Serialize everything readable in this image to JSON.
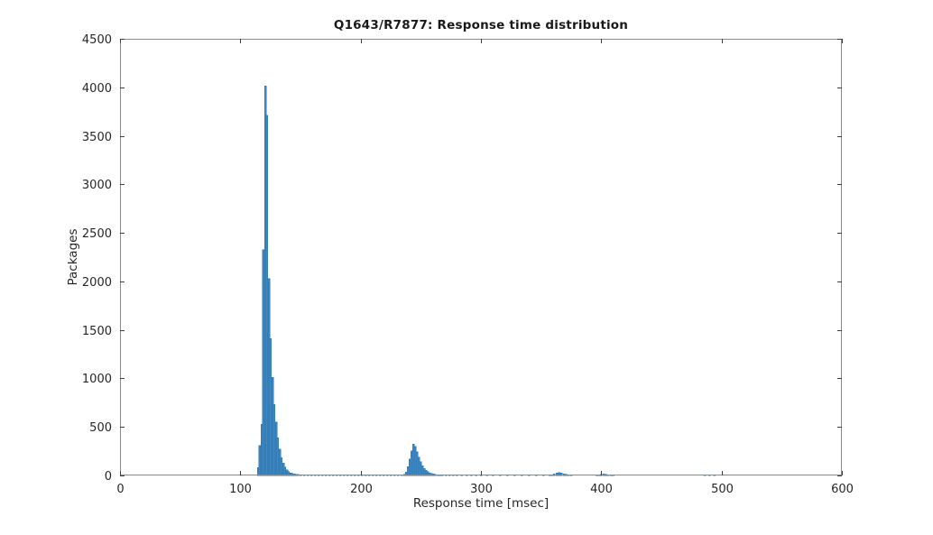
{
  "figure": {
    "background": "#ffffff"
  },
  "chart_data": {
    "type": "bar",
    "title": "Q1643/R7877: Response time distribution",
    "xlabel": "Response time [msec]",
    "ylabel": "Packages",
    "xlim": [
      0,
      600
    ],
    "ylim": [
      0,
      4500
    ],
    "xticks": [
      0,
      100,
      200,
      300,
      400,
      500,
      600
    ],
    "yticks": [
      0,
      500,
      1000,
      1500,
      2000,
      2500,
      3000,
      3500,
      4000,
      4500
    ],
    "grid": false,
    "legend": null,
    "box": true,
    "tick_direction": "in",
    "bar_color": "#3d88c2",
    "bar_edge_color": "#2e74ad",
    "axis_color": "#8a8a8a",
    "tick_color": "#3f3f3f",
    "text_color": "#262626",
    "bin_width_msec": 1.5,
    "bins_note": "pairs of [bin_center_msec, package_count]",
    "bins": [
      [
        114.8,
        80
      ],
      [
        116.2,
        310
      ],
      [
        117.8,
        530
      ],
      [
        119.2,
        2325
      ],
      [
        120.8,
        4016
      ],
      [
        122.2,
        3710
      ],
      [
        123.8,
        2030
      ],
      [
        125.2,
        1410
      ],
      [
        126.8,
        1010
      ],
      [
        128.2,
        730
      ],
      [
        129.8,
        550
      ],
      [
        131.2,
        390
      ],
      [
        132.8,
        270
      ],
      [
        134.2,
        185
      ],
      [
        135.8,
        130
      ],
      [
        137.2,
        85
      ],
      [
        138.8,
        56
      ],
      [
        140.2,
        38
      ],
      [
        141.8,
        27
      ],
      [
        143.2,
        20
      ],
      [
        144.8,
        15
      ],
      [
        146.2,
        12
      ],
      [
        147.8,
        10
      ],
      [
        150,
        9
      ],
      [
        153,
        8
      ],
      [
        156,
        7
      ],
      [
        159,
        6
      ],
      [
        162,
        6
      ],
      [
        165,
        5
      ],
      [
        168,
        5
      ],
      [
        171,
        5
      ],
      [
        174,
        4
      ],
      [
        177,
        4
      ],
      [
        180,
        4
      ],
      [
        183,
        4
      ],
      [
        186,
        4
      ],
      [
        189,
        3
      ],
      [
        192,
        4
      ],
      [
        195,
        3
      ],
      [
        198,
        4
      ],
      [
        201,
        3
      ],
      [
        204,
        3
      ],
      [
        207,
        3
      ],
      [
        210,
        3
      ],
      [
        213,
        3
      ],
      [
        216,
        3
      ],
      [
        219,
        3
      ],
      [
        222,
        3
      ],
      [
        225,
        3
      ],
      [
        228,
        3
      ],
      [
        231,
        4
      ],
      [
        234,
        5
      ],
      [
        236.5,
        12
      ],
      [
        238,
        35
      ],
      [
        239.5,
        90
      ],
      [
        241,
        170
      ],
      [
        242.5,
        255
      ],
      [
        244,
        323
      ],
      [
        245.5,
        298
      ],
      [
        247,
        242
      ],
      [
        248.5,
        188
      ],
      [
        250,
        140
      ],
      [
        251.5,
        102
      ],
      [
        253,
        74
      ],
      [
        254.5,
        53
      ],
      [
        256,
        38
      ],
      [
        257.5,
        27
      ],
      [
        259,
        19
      ],
      [
        260.5,
        14
      ],
      [
        262,
        11
      ],
      [
        264,
        9
      ],
      [
        266,
        7
      ],
      [
        268,
        6
      ],
      [
        271,
        5
      ],
      [
        274,
        4
      ],
      [
        277,
        4
      ],
      [
        280,
        3
      ],
      [
        284,
        3
      ],
      [
        288,
        3
      ],
      [
        292,
        3
      ],
      [
        296,
        3
      ],
      [
        300,
        3
      ],
      [
        305,
        3
      ],
      [
        310,
        3
      ],
      [
        316,
        3
      ],
      [
        322,
        3
      ],
      [
        328,
        3
      ],
      [
        334,
        3
      ],
      [
        340,
        3
      ],
      [
        346,
        3
      ],
      [
        352,
        4
      ],
      [
        357,
        5
      ],
      [
        359,
        8
      ],
      [
        361,
        14
      ],
      [
        363,
        24
      ],
      [
        365,
        30
      ],
      [
        367,
        24
      ],
      [
        369,
        16
      ],
      [
        371,
        10
      ],
      [
        373,
        6
      ],
      [
        375,
        4
      ],
      [
        396,
        4
      ],
      [
        398,
        7
      ],
      [
        400,
        12
      ],
      [
        402,
        14
      ],
      [
        404,
        10
      ],
      [
        406,
        6
      ],
      [
        408,
        4
      ],
      [
        410,
        3
      ],
      [
        486,
        2
      ],
      [
        490,
        3
      ],
      [
        494,
        2
      ]
    ]
  }
}
